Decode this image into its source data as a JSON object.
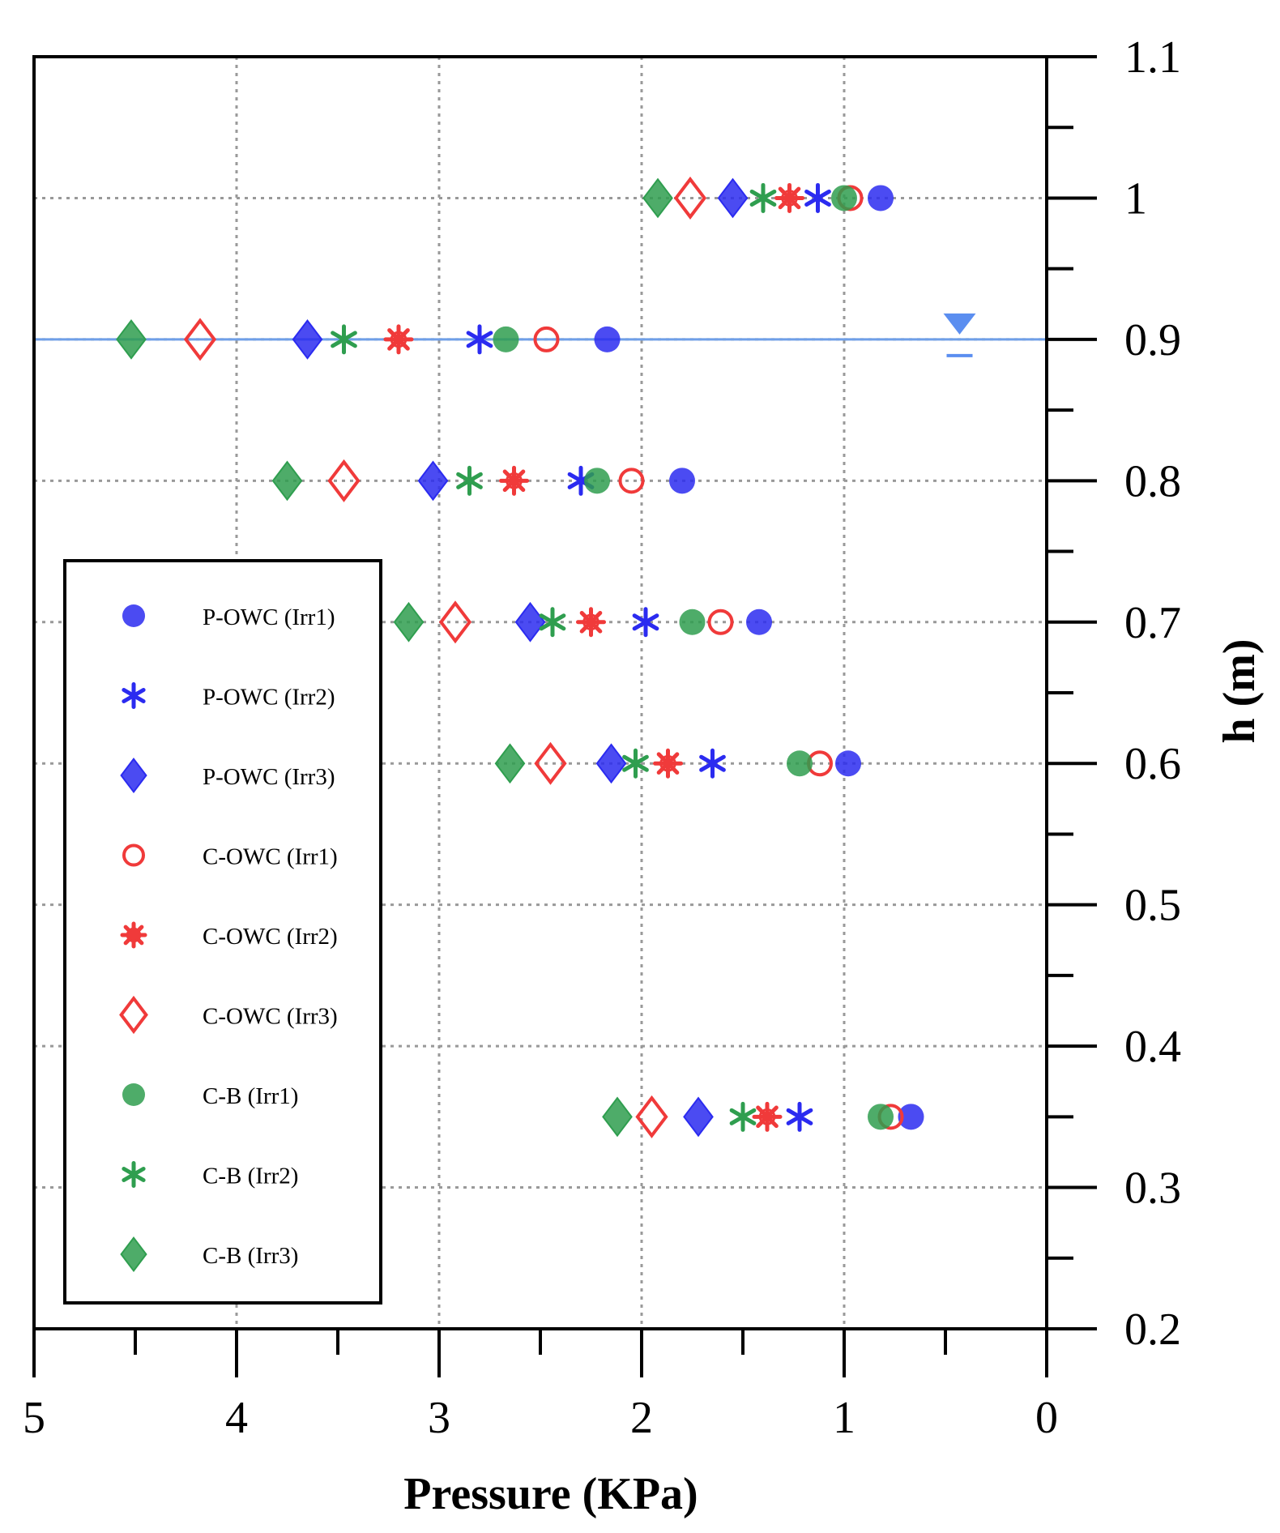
{
  "chart_data": {
    "type": "scatter",
    "title": "",
    "xlabel": "Pressure (KPa)",
    "ylabel": "h (m)",
    "xlim": [
      5,
      0
    ],
    "x_reversed": true,
    "ylim": [
      0.2,
      1.1
    ],
    "x_ticks": [
      "5",
      "4",
      "3",
      "2",
      "1",
      "0"
    ],
    "y_ticks": [
      "0.2",
      "0.3",
      "0.4",
      "0.5",
      "0.6",
      "0.7",
      "0.8",
      "0.9",
      "1",
      "1.1"
    ],
    "y_axis_side": "right",
    "grid": true,
    "legend_position": "bottom-left",
    "still_water_level": 0.9,
    "series": [
      {
        "name": "P-OWC (Irr1)",
        "marker": "circle",
        "filled": true,
        "color": "#2b2bf0",
        "points": [
          [
            0.82,
            1.0
          ],
          [
            2.17,
            0.9
          ],
          [
            1.8,
            0.8
          ],
          [
            1.42,
            0.7
          ],
          [
            0.98,
            0.6
          ],
          [
            0.67,
            0.35
          ]
        ]
      },
      {
        "name": "P-OWC (Irr2)",
        "marker": "asterisk",
        "filled": true,
        "color": "#2b2bf0",
        "points": [
          [
            1.13,
            1.0
          ],
          [
            2.8,
            0.9
          ],
          [
            2.3,
            0.8
          ],
          [
            1.98,
            0.7
          ],
          [
            1.65,
            0.6
          ],
          [
            1.22,
            0.35
          ]
        ]
      },
      {
        "name": "P-OWC (Irr3)",
        "marker": "diamond",
        "filled": true,
        "color": "#2b2bf0",
        "points": [
          [
            1.55,
            1.0
          ],
          [
            3.65,
            0.9
          ],
          [
            3.03,
            0.8
          ],
          [
            2.55,
            0.7
          ],
          [
            2.15,
            0.6
          ],
          [
            1.72,
            0.35
          ]
        ]
      },
      {
        "name": "C-OWC (Irr1)",
        "marker": "circle",
        "filled": false,
        "color": "#f03a3a",
        "points": [
          [
            0.97,
            1.0
          ],
          [
            2.47,
            0.9
          ],
          [
            2.05,
            0.8
          ],
          [
            1.61,
            0.7
          ],
          [
            1.12,
            0.6
          ],
          [
            0.77,
            0.35
          ]
        ]
      },
      {
        "name": "C-OWC (Irr2)",
        "marker": "flower",
        "filled": true,
        "color": "#f03a3a",
        "points": [
          [
            1.27,
            1.0
          ],
          [
            3.2,
            0.9
          ],
          [
            2.63,
            0.8
          ],
          [
            2.25,
            0.7
          ],
          [
            1.87,
            0.6
          ],
          [
            1.38,
            0.35
          ]
        ]
      },
      {
        "name": "C-OWC (Irr3)",
        "marker": "diamond",
        "filled": false,
        "color": "#f03a3a",
        "points": [
          [
            1.76,
            1.0
          ],
          [
            4.18,
            0.9
          ],
          [
            3.47,
            0.8
          ],
          [
            2.92,
            0.7
          ],
          [
            2.45,
            0.6
          ],
          [
            1.95,
            0.35
          ]
        ]
      },
      {
        "name": "C-B (Irr1)",
        "marker": "circle",
        "filled": true,
        "color": "#2f9e4f",
        "points": [
          [
            1.0,
            1.0
          ],
          [
            2.67,
            0.9
          ],
          [
            2.22,
            0.8
          ],
          [
            1.75,
            0.7
          ],
          [
            1.22,
            0.6
          ],
          [
            0.82,
            0.35
          ]
        ]
      },
      {
        "name": "C-B (Irr2)",
        "marker": "asterisk",
        "filled": true,
        "color": "#2f9e4f",
        "points": [
          [
            1.4,
            1.0
          ],
          [
            3.47,
            0.9
          ],
          [
            2.85,
            0.8
          ],
          [
            2.44,
            0.7
          ],
          [
            2.03,
            0.6
          ],
          [
            1.5,
            0.35
          ]
        ]
      },
      {
        "name": "C-B (Irr3)",
        "marker": "diamond",
        "filled": true,
        "color": "#2f9e4f",
        "points": [
          [
            1.92,
            1.0
          ],
          [
            4.52,
            0.9
          ],
          [
            3.75,
            0.8
          ],
          [
            3.15,
            0.7
          ],
          [
            2.65,
            0.6
          ],
          [
            2.12,
            0.35
          ]
        ]
      }
    ]
  }
}
